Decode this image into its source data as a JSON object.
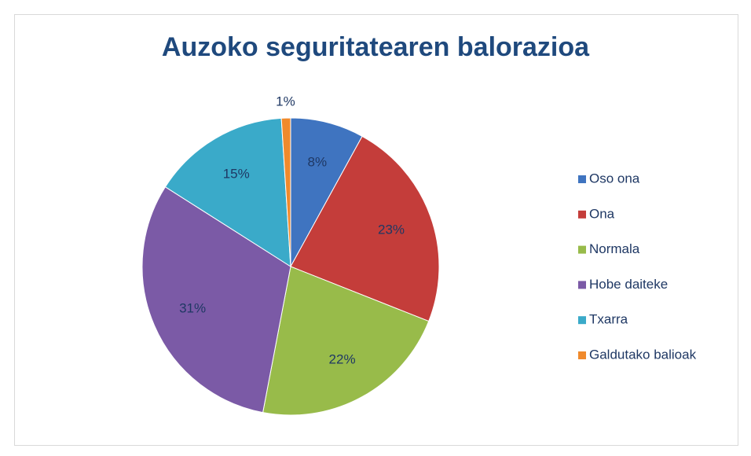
{
  "chart_data": {
    "type": "pie",
    "title": "Auzoko seguritatearen balorazioa",
    "categories": [
      "Oso ona",
      "Ona",
      "Normala",
      "Hobe daiteke",
      "Txarra",
      "Galdutako balioak"
    ],
    "values": [
      8,
      23,
      22,
      31,
      15,
      1
    ],
    "value_labels": [
      "8%",
      "23%",
      "22%",
      "31%",
      "15%",
      "1%"
    ],
    "colors": [
      "#3f74c0",
      "#c43d3a",
      "#98bb4a",
      "#7b5aa6",
      "#3aaac9",
      "#f08a2c"
    ],
    "legend": "right"
  }
}
